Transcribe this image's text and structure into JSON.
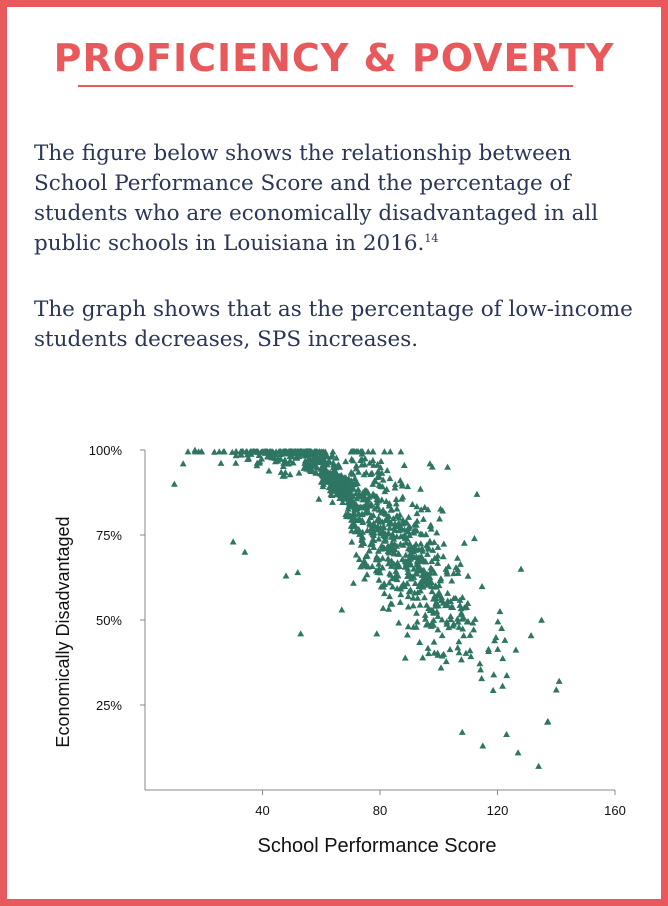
{
  "header": {
    "title": "PROFICIENCY & POVERTY"
  },
  "intro": {
    "p1_text": "The figure below shows the relationship between School Performance Score and the percentage of students who are economically disadvantaged in all public schools in Louisiana in 2016.",
    "p1_footnote": "14",
    "p2_text": "The graph shows that as the percentage of low-income students decreases, SPS increases."
  },
  "colors": {
    "accent": "#e8595c",
    "text": "#2a3557",
    "marker": "#2e7563"
  },
  "chart_data": {
    "type": "scatter",
    "marker": "triangle",
    "xlabel": "School Performance Score",
    "ylabel": "Economically Disadvantaged",
    "xlim": [
      0,
      160
    ],
    "ylim": [
      0,
      100
    ],
    "xticks": [
      40,
      80,
      120,
      160
    ],
    "yticks": [
      25,
      50,
      75,
      100
    ],
    "xtick_labels": [
      "40",
      "80",
      "120",
      "160"
    ],
    "ytick_labels": [
      "25%",
      "50%",
      "75%",
      "100%"
    ],
    "grid": false,
    "legend": false,
    "point_count": 1200,
    "highlighted_points": [
      {
        "x": 17,
        "y": 100
      },
      {
        "x": 10,
        "y": 90
      },
      {
        "x": 13,
        "y": 96
      },
      {
        "x": 30,
        "y": 73
      },
      {
        "x": 34,
        "y": 70
      },
      {
        "x": 48,
        "y": 63
      },
      {
        "x": 52,
        "y": 64
      },
      {
        "x": 53,
        "y": 46
      },
      {
        "x": 67,
        "y": 53
      },
      {
        "x": 108,
        "y": 17
      },
      {
        "x": 115,
        "y": 13
      },
      {
        "x": 127,
        "y": 11
      },
      {
        "x": 134,
        "y": 7
      },
      {
        "x": 137,
        "y": 20
      },
      {
        "x": 141,
        "y": 32
      },
      {
        "x": 135,
        "y": 50
      },
      {
        "x": 128,
        "y": 65
      },
      {
        "x": 113,
        "y": 87
      },
      {
        "x": 103,
        "y": 95
      },
      {
        "x": 97,
        "y": 96
      }
    ]
  }
}
